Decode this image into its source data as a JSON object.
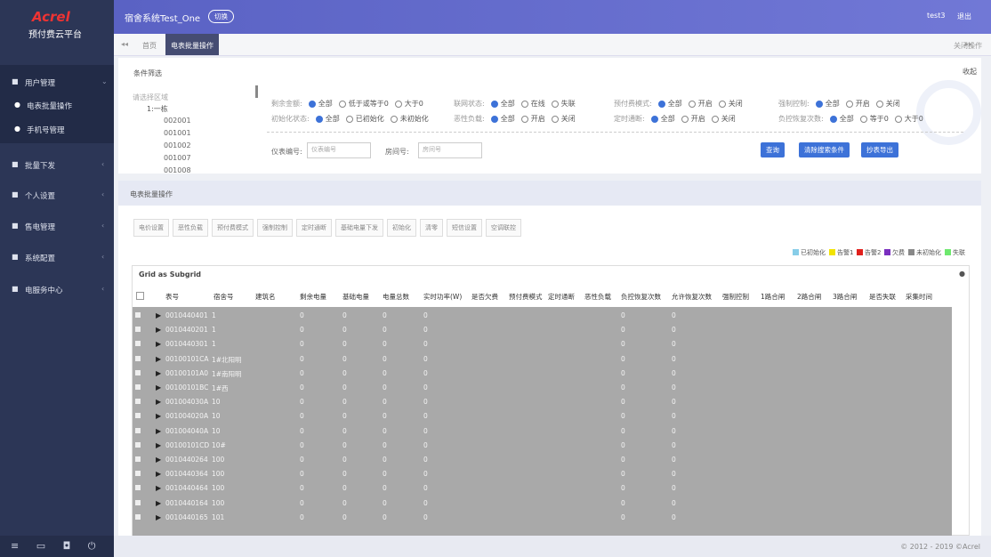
{
  "sidebar": {
    "logo": "Acrel",
    "subtitle": "预付费云平台",
    "menu": [
      {
        "label": "用户管理",
        "children": [
          "电表批量操作",
          "手机号管理"
        ]
      },
      {
        "label": "批量下发"
      },
      {
        "label": "个人设置"
      },
      {
        "label": "售电管理"
      },
      {
        "label": "系统配置"
      },
      {
        "label": "电服务中心"
      }
    ]
  },
  "topbar": {
    "system": "宿舍系统Test_One",
    "switch": "切换",
    "user": "test3",
    "logout": "退出"
  },
  "tabs": {
    "items": [
      "首页",
      "电表批量操作"
    ],
    "close": "关闭操作"
  },
  "filter": {
    "title": "条件筛选",
    "collapse": "收起",
    "tree": {
      "placeholder": "请选择区域",
      "root": "1:一栋",
      "nodes": [
        "002001",
        "001001",
        "001002",
        "001007",
        "001008"
      ]
    },
    "groups": [
      {
        "label": "剩余金额:",
        "options": [
          "全部",
          "低于或等于0",
          "大于0"
        ]
      },
      {
        "label": "联网状态:",
        "options": [
          "全部",
          "在线",
          "失联"
        ]
      },
      {
        "label": "预付费模式:",
        "options": [
          "全部",
          "开启",
          "关闭"
        ]
      },
      {
        "label": "强制控制:",
        "options": [
          "全部",
          "开启",
          "关闭"
        ]
      },
      {
        "label": "初始化状态:",
        "options": [
          "全部",
          "已初始化",
          "未初始化"
        ]
      },
      {
        "label": "恶性负载:",
        "options": [
          "全部",
          "开启",
          "关闭"
        ]
      },
      {
        "label": "定时通断:",
        "options": [
          "全部",
          "开启",
          "关闭"
        ]
      },
      {
        "label": "负控恢复次数:",
        "options": [
          "全部",
          "等于0",
          "大于0"
        ]
      }
    ],
    "inputs": [
      {
        "label": "仪表编号:",
        "placeholder": "仪表编号"
      },
      {
        "label": "房间号:",
        "placeholder": "房间号"
      }
    ],
    "buttons": [
      "查询",
      "清除搜索条件",
      "抄表导出"
    ]
  },
  "panel": {
    "title": "电表批量操作",
    "toolbar": [
      "电价设置",
      "恶性负载",
      "预付费模式",
      "强制控制",
      "定时通断",
      "基础电量下发",
      "初始化",
      "清零",
      "短信设置",
      "空调联控"
    ],
    "legend": [
      {
        "label": "已初始化",
        "color": "#87cde8"
      },
      {
        "label": "告警1",
        "color": "#f2e300"
      },
      {
        "label": "告警2",
        "color": "#e0201c"
      },
      {
        "label": "欠费",
        "color": "#7a2fbf"
      },
      {
        "label": "未初始化",
        "color": "#888888"
      },
      {
        "label": "失联",
        "color": "#6ee86e"
      }
    ],
    "grid": {
      "title": "Grid as Subgrid",
      "columns": [
        "表号",
        "宿舍号",
        "建筑名",
        "剩余电量",
        "基础电量",
        "电量总数",
        "实时功率(W)",
        "是否欠费",
        "预付费模式",
        "定时通断",
        "恶性负载",
        "负控恢复次数",
        "允许恢复次数",
        "强制控制",
        "1路合闸",
        "2路合闸",
        "3路合闸",
        "是否失联",
        "采集时间"
      ],
      "rows": [
        {
          "meter": "0010440401",
          "room": "1",
          "remaining": 0,
          "base": 0,
          "total": 0,
          "power": 0,
          "neg_recovery": 0,
          "allowed_recovery": 0
        },
        {
          "meter": "0010440201",
          "room": "1",
          "remaining": 0,
          "base": 0,
          "total": 0,
          "power": 0,
          "neg_recovery": 0,
          "allowed_recovery": 0
        },
        {
          "meter": "0010440301",
          "room": "1",
          "remaining": 0,
          "base": 0,
          "total": 0,
          "power": 0,
          "neg_recovery": 0,
          "allowed_recovery": 0
        },
        {
          "meter": "00100101CA",
          "room": "1#北阳明",
          "remaining": 0,
          "base": 0,
          "total": 0,
          "power": 0,
          "neg_recovery": 0,
          "allowed_recovery": 0
        },
        {
          "meter": "00100101A0",
          "room": "1#南阳明",
          "remaining": 0,
          "base": 0,
          "total": 0,
          "power": 0,
          "neg_recovery": 0,
          "allowed_recovery": 0
        },
        {
          "meter": "00100101BC",
          "room": "1#西",
          "remaining": 0,
          "base": 0,
          "total": 0,
          "power": 0,
          "neg_recovery": 0,
          "allowed_recovery": 0
        },
        {
          "meter": "001004030A",
          "room": "10",
          "remaining": 0,
          "base": 0,
          "total": 0,
          "power": 0,
          "neg_recovery": 0,
          "allowed_recovery": 0
        },
        {
          "meter": "001004020A",
          "room": "10",
          "remaining": 0,
          "base": 0,
          "total": 0,
          "power": 0,
          "neg_recovery": 0,
          "allowed_recovery": 0
        },
        {
          "meter": "001004040A",
          "room": "10",
          "remaining": 0,
          "base": 0,
          "total": 0,
          "power": 0,
          "neg_recovery": 0,
          "allowed_recovery": 0
        },
        {
          "meter": "00100101CD",
          "room": "10#",
          "remaining": 0,
          "base": 0,
          "total": 0,
          "power": 0,
          "neg_recovery": 0,
          "allowed_recovery": 0
        },
        {
          "meter": "0010440264",
          "room": "100",
          "remaining": 0,
          "base": 0,
          "total": 0,
          "power": 0,
          "neg_recovery": 0,
          "allowed_recovery": 0
        },
        {
          "meter": "0010440364",
          "room": "100",
          "remaining": 0,
          "base": 0,
          "total": 0,
          "power": 0,
          "neg_recovery": 0,
          "allowed_recovery": 0
        },
        {
          "meter": "0010440464",
          "room": "100",
          "remaining": 0,
          "base": 0,
          "total": 0,
          "power": 0,
          "neg_recovery": 0,
          "allowed_recovery": 0
        },
        {
          "meter": "0010440164",
          "room": "100",
          "remaining": 0,
          "base": 0,
          "total": 0,
          "power": 0,
          "neg_recovery": 0,
          "allowed_recovery": 0
        },
        {
          "meter": "0010440165",
          "room": "101",
          "remaining": 0,
          "base": 0,
          "total": 0,
          "power": 0,
          "neg_recovery": 0,
          "allowed_recovery": 0
        }
      ]
    }
  },
  "footer": "© 2012 - 2019 ©Acrel"
}
